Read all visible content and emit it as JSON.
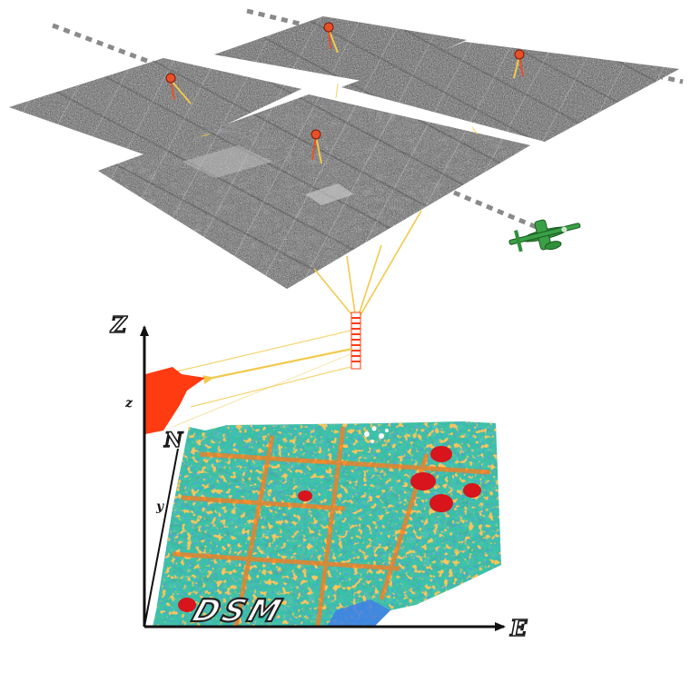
{
  "labels": {
    "z_axis": "Z",
    "z_tick": "z",
    "north_axis": "N",
    "y_tick": "y",
    "east_axis": "E",
    "dsm": "DSM"
  },
  "colors": {
    "flight_line": "#8a8a8a",
    "ray": "#f2c94c",
    "marker": "#e8502a",
    "airplane": "#2f8f3a",
    "height_profile": "#ff3b12",
    "axis": "#111111"
  },
  "icons": {
    "airplane": "airplane-icon",
    "camera_marker": "camera-pin-icon",
    "height_stack": "height-sample-stack"
  }
}
